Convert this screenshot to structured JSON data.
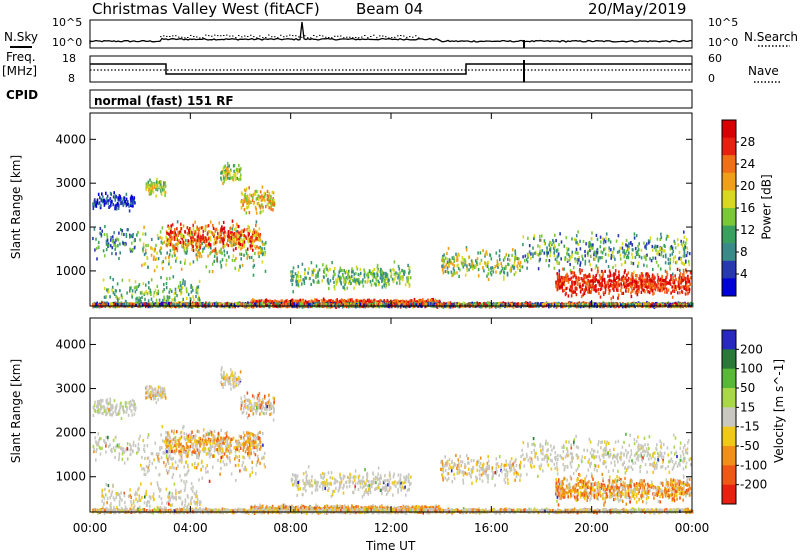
{
  "header": {
    "station": "Christmas Valley West (fitACF)",
    "beam": "Beam 04",
    "date": "20/May/2019"
  },
  "top_panels": {
    "nsky_label": "N.Sky",
    "nsky_ticks": [
      "10^5",
      "10^0"
    ],
    "nsearch_label": "N.Search",
    "nsearch_ticks": [
      "10^5",
      "10^0"
    ],
    "freq_label_1": "Freq.",
    "freq_label_2": "[MHz]",
    "freq_ticks": [
      "18",
      "8"
    ],
    "nave_label": "Nave",
    "nave_ticks": [
      "60",
      "0"
    ],
    "cpid_label": "CPID",
    "cpid_text": "normal (fast) 151 RF"
  },
  "colors": {
    "power": [
      "#0000d8",
      "#2838b0",
      "#3a8a8a",
      "#3aa060",
      "#7ac838",
      "#d8d820",
      "#f0a018",
      "#f07018",
      "#e82010",
      "#d80000"
    ],
    "velocity": [
      "#2828c0",
      "#287838",
      "#58b838",
      "#a8d848",
      "#c8c8c0",
      "#f0c818",
      "#f09018",
      "#f05818",
      "#e82010"
    ]
  },
  "chart_data": [
    {
      "type": "heatmap",
      "quantity": "power",
      "ylabel": "Slant Range [km]",
      "yticks": [
        1000,
        2000,
        3000,
        4000
      ],
      "ylim": [
        200,
        4600
      ],
      "colorbar_label": "Power [dB]",
      "colorbar_ticks": [
        "4",
        "8",
        "12",
        "16",
        "20",
        "24",
        "28"
      ]
    },
    {
      "type": "heatmap",
      "quantity": "velocity",
      "ylabel": "Slant Range [km]",
      "yticks": [
        1000,
        2000,
        3000,
        4000
      ],
      "ylim": [
        200,
        4600
      ],
      "colorbar_label": "Velocity [m s^-1]",
      "colorbar_ticks": [
        "200",
        "100",
        "50",
        "15",
        "-15",
        "-50",
        "-100",
        "-200"
      ]
    }
  ],
  "xaxis": {
    "ticks": [
      "00:00",
      "04:00",
      "08:00",
      "12:00",
      "16:00",
      "20:00",
      "00:00"
    ],
    "label": "Time UT"
  }
}
